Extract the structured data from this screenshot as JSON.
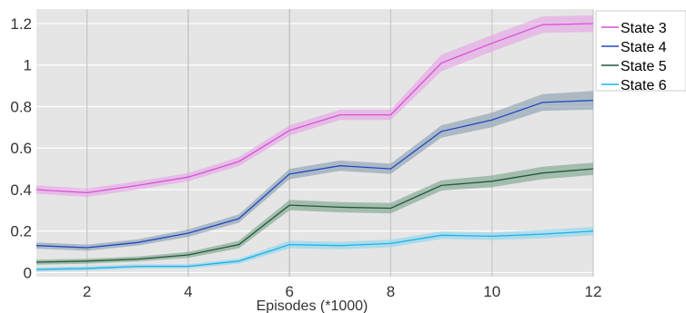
{
  "chart_data": {
    "type": "line",
    "title": "",
    "xlabel": "Episodes (*1000)",
    "ylabel": "",
    "xlim": [
      1,
      12
    ],
    "ylim": [
      -0.02,
      1.27
    ],
    "x": [
      1,
      2,
      3,
      4,
      5,
      6,
      7,
      8,
      9,
      10,
      11,
      12
    ],
    "x_ticks": [
      2,
      4,
      6,
      8,
      10,
      12
    ],
    "y_ticks": [
      0,
      0.2,
      0.4,
      0.6,
      0.8,
      1,
      1.2
    ],
    "y_tick_labels": [
      "0",
      "0.2",
      "0.4",
      "0.6",
      "0.8",
      "1",
      "1.2"
    ],
    "grid": true,
    "legend_position": "top-right-outside",
    "series": [
      {
        "name": "State 3",
        "color": "#d94fd9",
        "band_color": "#e59ae5",
        "values": [
          0.4,
          0.385,
          0.42,
          0.46,
          0.535,
          0.685,
          0.76,
          0.76,
          1.01,
          1.105,
          1.195,
          1.2
        ],
        "spread": [
          0.02,
          0.02,
          0.02,
          0.02,
          0.022,
          0.025,
          0.025,
          0.025,
          0.04,
          0.04,
          0.04,
          0.04
        ]
      },
      {
        "name": "State 4",
        "color": "#1f48c4",
        "band_color": "#7d96ac",
        "values": [
          0.13,
          0.12,
          0.145,
          0.19,
          0.26,
          0.475,
          0.515,
          0.5,
          0.68,
          0.735,
          0.82,
          0.83
        ],
        "spread": [
          0.015,
          0.015,
          0.015,
          0.018,
          0.02,
          0.025,
          0.025,
          0.025,
          0.03,
          0.035,
          0.04,
          0.045
        ]
      },
      {
        "name": "State 5",
        "color": "#1d5a3a",
        "band_color": "#6f9a82",
        "values": [
          0.05,
          0.055,
          0.065,
          0.085,
          0.135,
          0.325,
          0.315,
          0.31,
          0.42,
          0.44,
          0.48,
          0.5
        ],
        "spread": [
          0.012,
          0.012,
          0.012,
          0.014,
          0.018,
          0.025,
          0.025,
          0.025,
          0.025,
          0.028,
          0.03,
          0.03
        ]
      },
      {
        "name": "State 6",
        "color": "#1ab3e8",
        "band_color": "#7fd3f0",
        "values": [
          0.015,
          0.02,
          0.03,
          0.03,
          0.055,
          0.135,
          0.13,
          0.14,
          0.18,
          0.175,
          0.185,
          0.2
        ],
        "spread": [
          0.01,
          0.01,
          0.01,
          0.01,
          0.012,
          0.018,
          0.018,
          0.018,
          0.018,
          0.018,
          0.02,
          0.02
        ]
      }
    ]
  }
}
